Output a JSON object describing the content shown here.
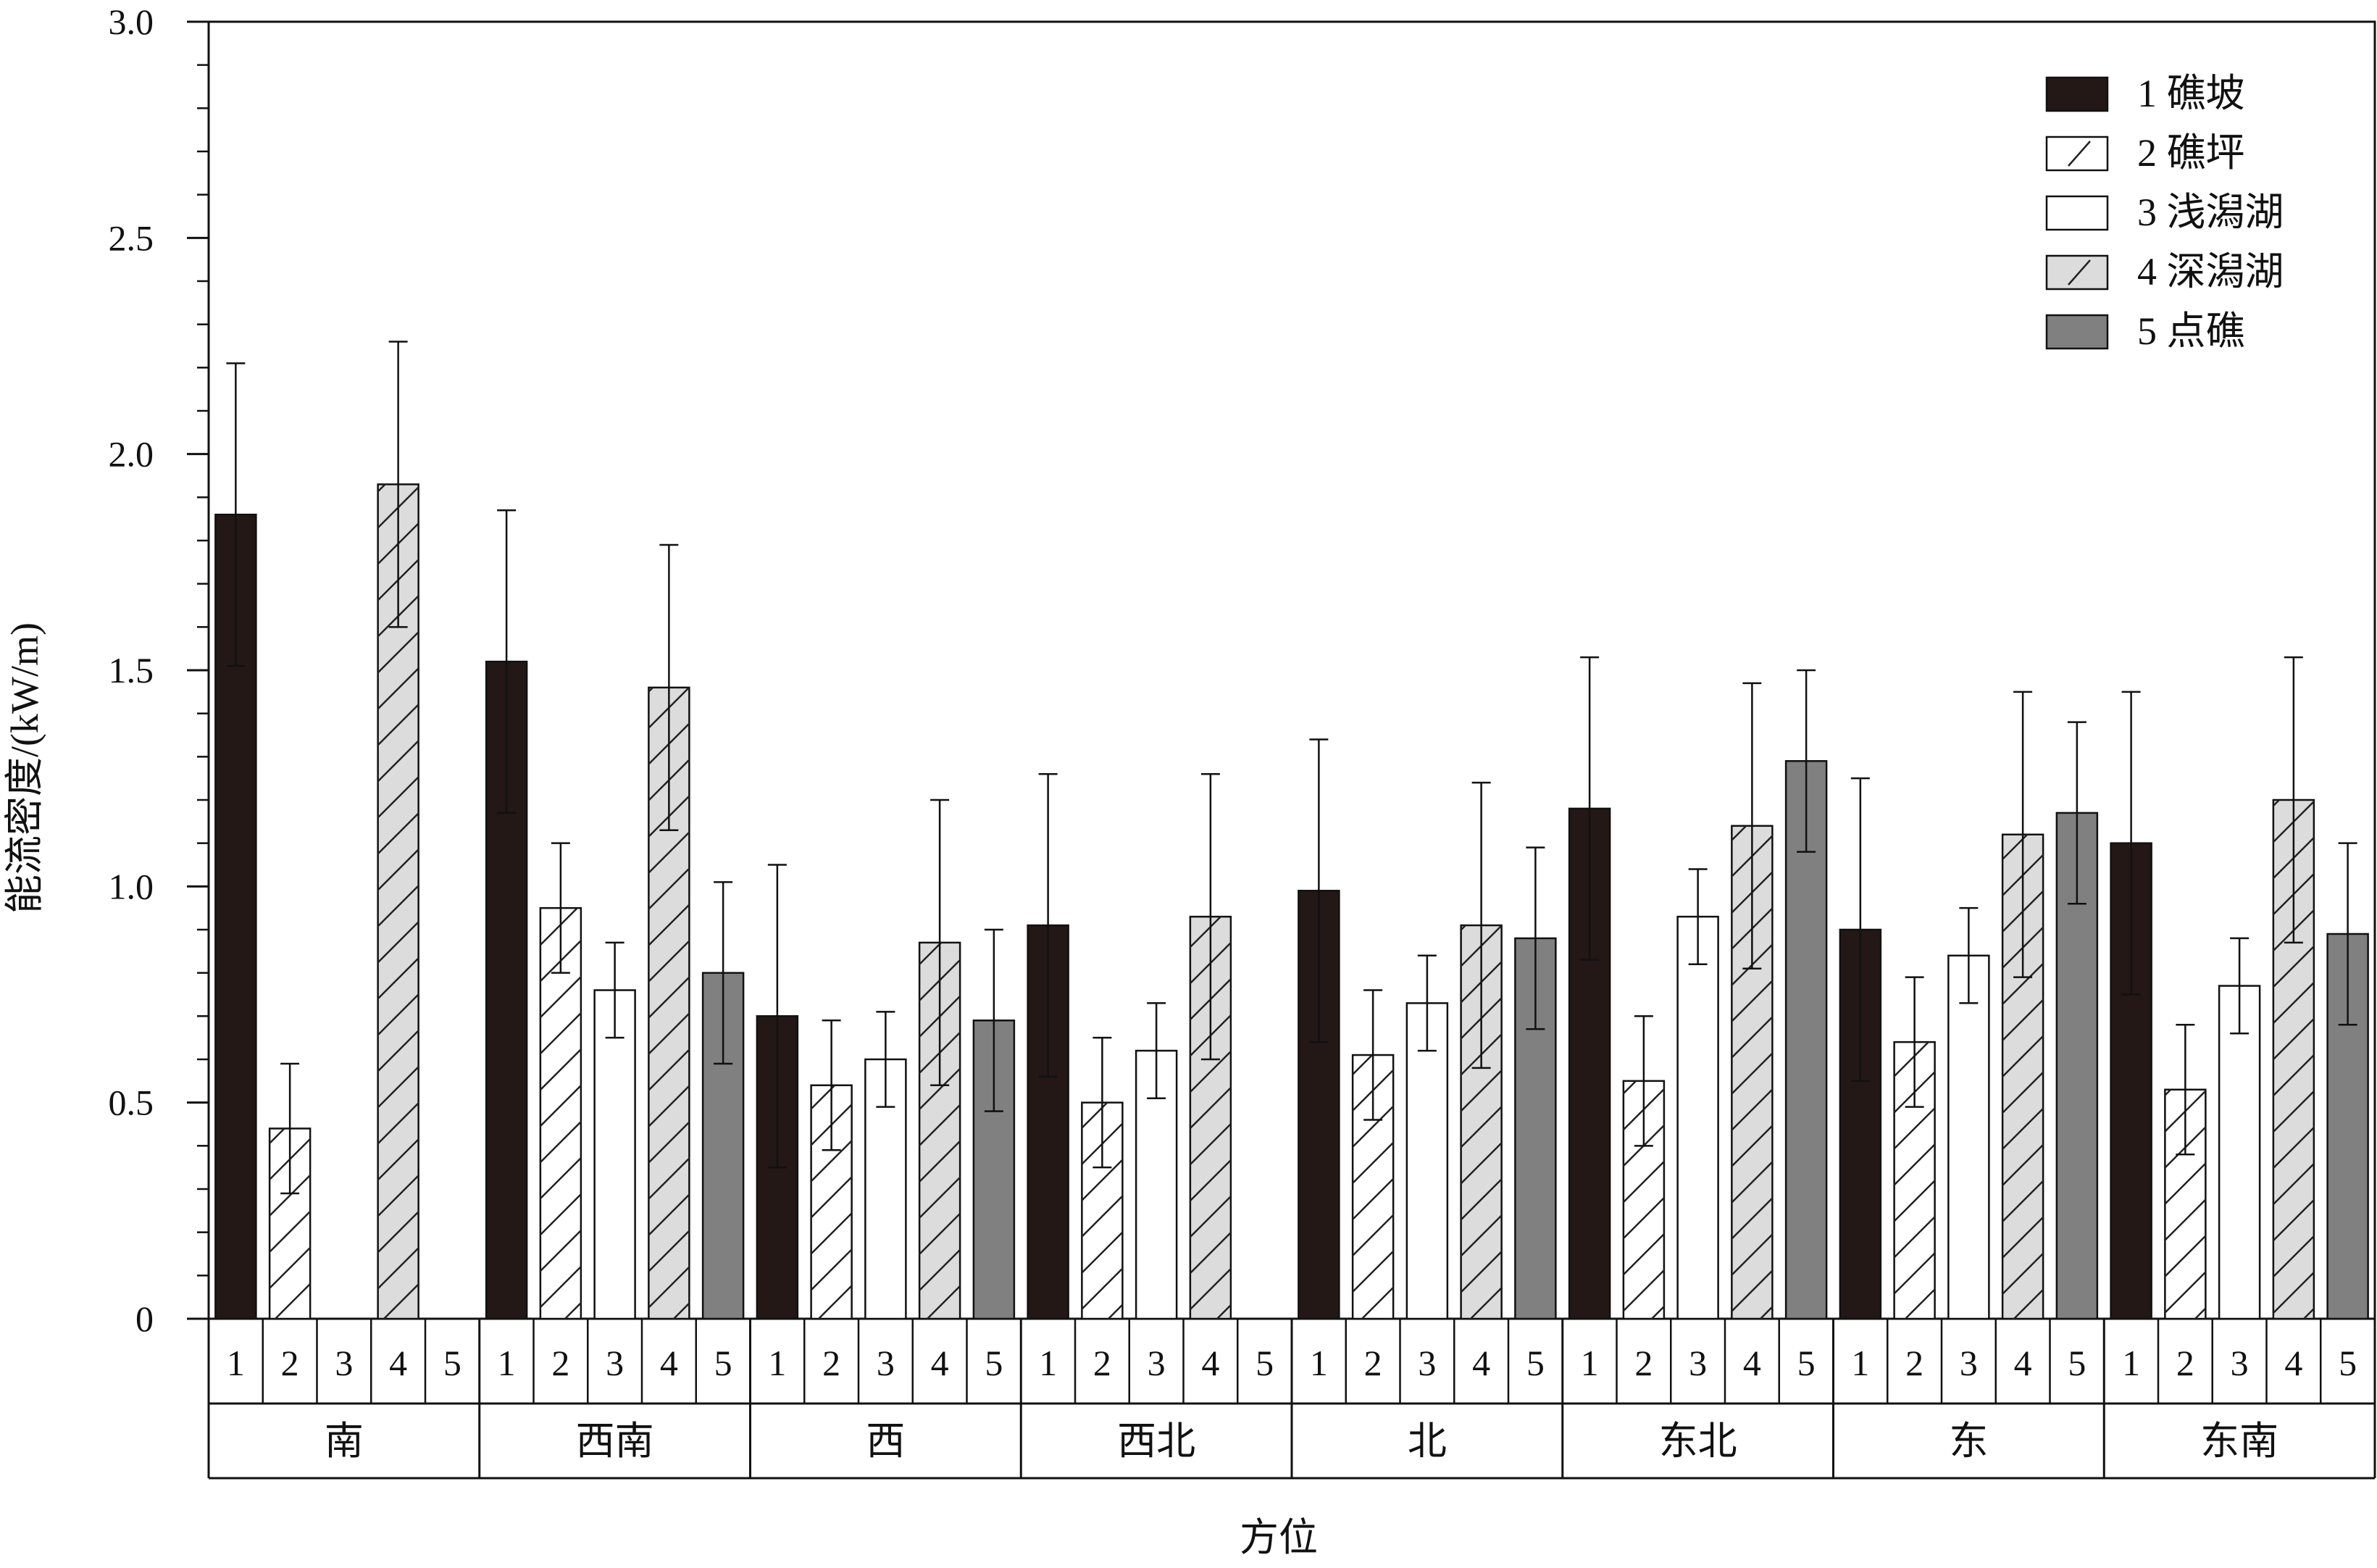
{
  "chart_data": {
    "type": "bar",
    "title": "",
    "xlabel": "方位",
    "ylabel": "能流密度/(kW/m)",
    "ylim": [
      0,
      3.0
    ],
    "yticks": [
      {
        "value": 0,
        "label": "0"
      },
      {
        "value": 0.5,
        "label": "0.5"
      },
      {
        "value": 1.0,
        "label": "1.0"
      },
      {
        "value": 1.5,
        "label": "1.5"
      },
      {
        "value": 2.0,
        "label": "2.0"
      },
      {
        "value": 2.5,
        "label": "2.5"
      },
      {
        "value": 3.0,
        "label": "3.0"
      }
    ],
    "grid": false,
    "legend_position": "top-right",
    "bar_index_labels": [
      "1",
      "2",
      "3",
      "4",
      "5"
    ],
    "categories": [
      "南",
      "西南",
      "西",
      "西北",
      "北",
      "东北",
      "东",
      "东南"
    ],
    "series": [
      {
        "name": "1 礁坡",
        "fill": "#231815",
        "hatch": false,
        "values": [
          1.86,
          1.52,
          0.7,
          0.91,
          0.99,
          1.18,
          0.9,
          1.1
        ],
        "errors": [
          0.35,
          0.35,
          0.35,
          0.35,
          0.35,
          0.35,
          0.35,
          0.35
        ]
      },
      {
        "name": "2 礁坪",
        "fill": "#ffffff",
        "hatch": true,
        "values": [
          0.44,
          0.95,
          0.54,
          0.5,
          0.61,
          0.55,
          0.64,
          0.53
        ],
        "errors": [
          0.15,
          0.15,
          0.15,
          0.15,
          0.15,
          0.15,
          0.15,
          0.15
        ]
      },
      {
        "name": "3 浅潟湖",
        "fill": "#ffffff",
        "hatch": false,
        "values": [
          null,
          0.76,
          0.6,
          0.62,
          0.73,
          0.93,
          0.84,
          0.77
        ],
        "errors": [
          null,
          0.11,
          0.11,
          0.11,
          0.11,
          0.11,
          0.11,
          0.11
        ]
      },
      {
        "name": "4 深潟湖",
        "fill": "#dcdcdc",
        "hatch": true,
        "values": [
          1.93,
          1.46,
          0.87,
          0.93,
          0.91,
          1.14,
          1.12,
          1.2
        ],
        "errors": [
          0.33,
          0.33,
          0.33,
          0.33,
          0.33,
          0.33,
          0.33,
          0.33
        ]
      },
      {
        "name": "5 点礁",
        "fill": "#808080",
        "hatch": false,
        "values": [
          null,
          0.8,
          0.69,
          null,
          0.88,
          1.29,
          1.17,
          0.89
        ],
        "errors": [
          null,
          0.21,
          0.21,
          null,
          0.21,
          0.21,
          0.21,
          0.21
        ]
      }
    ]
  }
}
